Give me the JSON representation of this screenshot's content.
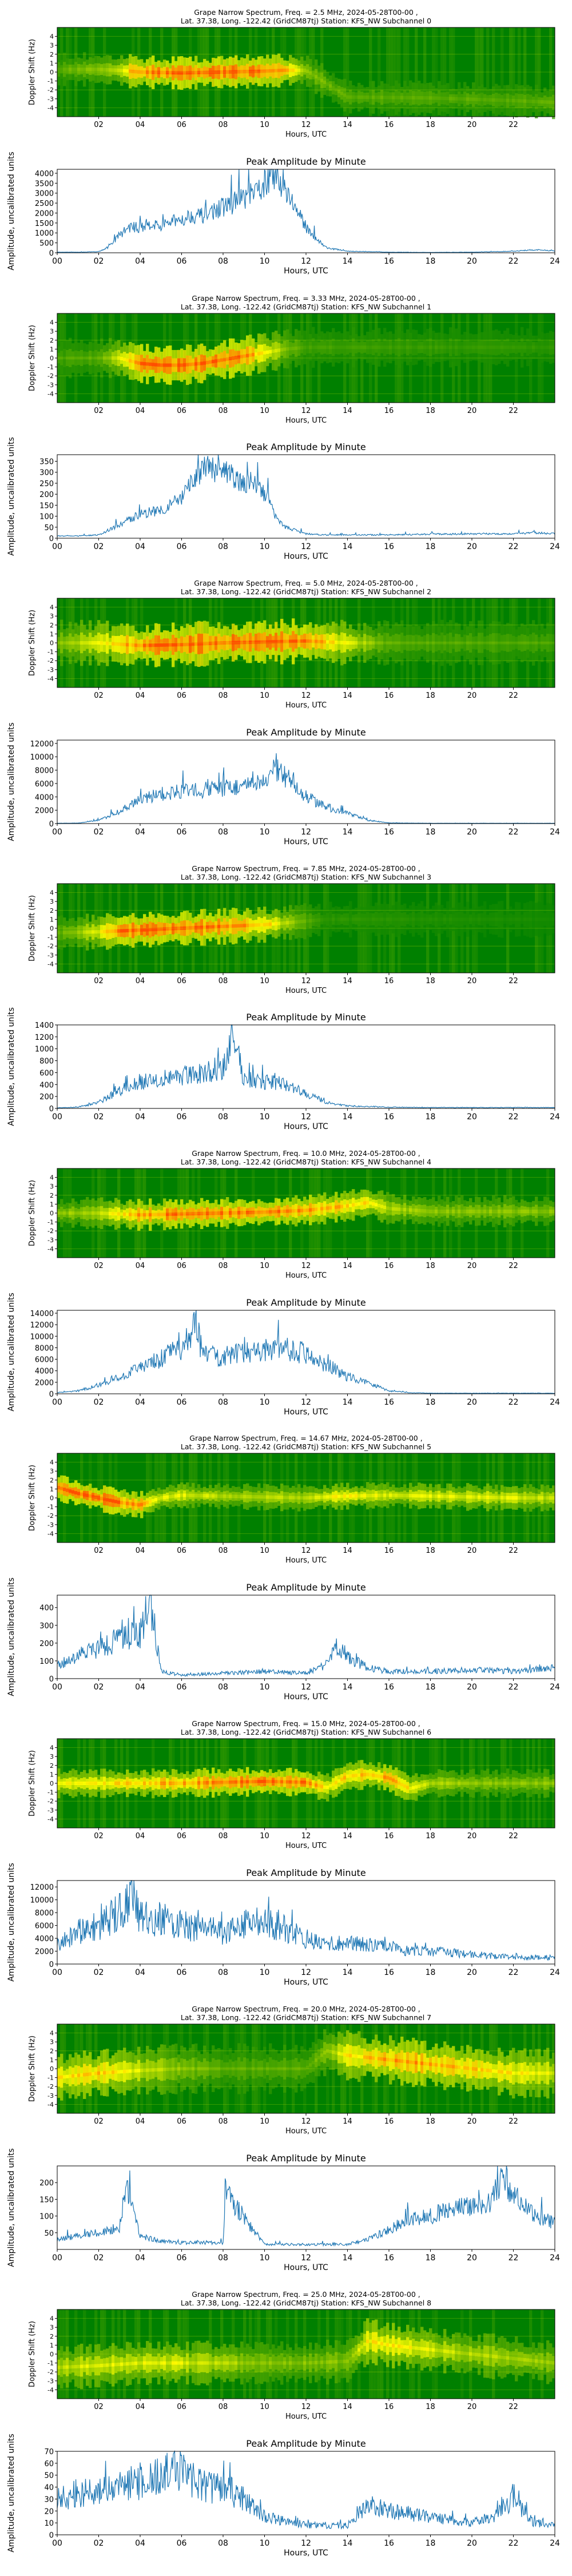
{
  "common": {
    "xlabel": "Hours, UTC",
    "spec_ylabel": "Doppler Shift (Hz)",
    "amp_title": "Peak Amplitude by Minute",
    "amp_ylabel": "Amplitude, uncalibrated units",
    "spec_xticks": [
      "02",
      "04",
      "06",
      "08",
      "10",
      "12",
      "14",
      "16",
      "18",
      "20",
      "22"
    ],
    "amp_xticks": [
      "00",
      "02",
      "04",
      "06",
      "08",
      "10",
      "12",
      "14",
      "16",
      "18",
      "20",
      "22",
      "24"
    ],
    "spec_yticks": [
      "-4",
      "-3",
      "-2",
      "-1",
      "0",
      "1",
      "2",
      "3",
      "4"
    ],
    "colors": {
      "line": "#1f77b4",
      "spec_bg": "#008000",
      "spec_mid": "#ffff00",
      "spec_hot": "#ff4500"
    }
  },
  "channels": [
    {
      "spec_title_1": "Grape Narrow Spectrum, Freq. = 2.5 MHz, 2024-05-28T00-00 ,",
      "spec_title_2": "Lat.  37.38, Long. -122.42 (GridCM87tj) Station: KFS_NW Subchannel 0"
    },
    {
      "spec_title_1": "Grape Narrow Spectrum, Freq. = 3.33 MHz, 2024-05-28T00-00 ,",
      "spec_title_2": "Lat.  37.38, Long. -122.42 (GridCM87tj) Station: KFS_NW Subchannel 1"
    },
    {
      "spec_title_1": "Grape Narrow Spectrum, Freq. = 5.0 MHz, 2024-05-28T00-00 ,",
      "spec_title_2": "Lat.  37.38, Long. -122.42 (GridCM87tj) Station: KFS_NW Subchannel 2"
    },
    {
      "spec_title_1": "Grape Narrow Spectrum, Freq. = 7.85 MHz, 2024-05-28T00-00 ,",
      "spec_title_2": "Lat.  37.38, Long. -122.42 (GridCM87tj) Station: KFS_NW Subchannel 3"
    },
    {
      "spec_title_1": "Grape Narrow Spectrum, Freq. = 10.0 MHz, 2024-05-28T00-00 ,",
      "spec_title_2": "Lat.  37.38, Long. -122.42 (GridCM87tj) Station: KFS_NW Subchannel 4"
    },
    {
      "spec_title_1": "Grape Narrow Spectrum, Freq. = 14.67 MHz, 2024-05-28T00-00 ,",
      "spec_title_2": "Lat.  37.38, Long. -122.42 (GridCM87tj) Station: KFS_NW Subchannel 5"
    },
    {
      "spec_title_1": "Grape Narrow Spectrum, Freq. = 15.0 MHz, 2024-05-28T00-00 ,",
      "spec_title_2": "Lat.  37.38, Long. -122.42 (GridCM87tj) Station: KFS_NW Subchannel 6"
    },
    {
      "spec_title_1": "Grape Narrow Spectrum, Freq. = 20.0 MHz, 2024-05-28T00-00 ,",
      "spec_title_2": "Lat.  37.38, Long. -122.42 (GridCM87tj) Station: KFS_NW Subchannel 7"
    },
    {
      "spec_title_1": "Grape Narrow Spectrum, Freq. = 25.0 MHz, 2024-05-28T00-00 ,",
      "spec_title_2": "Lat.  37.38, Long. -122.42 (GridCM87tj) Station: KFS_NW Subchannel 8"
    }
  ],
  "chart_data": [
    {
      "type": "heatmap",
      "title": "Grape Narrow Spectrum, Freq. = 2.5 MHz — Subchannel 0",
      "xlabel": "Hours, UTC",
      "ylabel": "Doppler Shift (Hz)",
      "xlim": [
        0,
        24
      ],
      "ylim": [
        -5,
        5
      ],
      "ridge_hours": [
        0,
        2,
        3,
        4,
        6,
        8,
        10,
        11,
        12,
        14,
        18,
        22,
        24
      ],
      "ridge_doppler": [
        0.3,
        0.3,
        0.2,
        0.0,
        -0.1,
        0.0,
        0.1,
        0.2,
        0.2,
        -2.8,
        -2.9,
        -3.2,
        -3.4
      ],
      "ridge_intensity": [
        0.2,
        0.3,
        0.5,
        0.9,
        1.0,
        1.0,
        1.0,
        0.8,
        0.3,
        0.2,
        0.2,
        0.2,
        0.2
      ],
      "spread_hz": 1.5
    },
    {
      "type": "line",
      "title": "Peak Amplitude by Minute",
      "xlabel": "Hours, UTC",
      "ylabel": "Amplitude, uncalibrated units",
      "xlim": [
        0,
        24
      ],
      "ylim": [
        0,
        4200
      ],
      "yticks": [
        0,
        500,
        1000,
        1500,
        2000,
        2500,
        3000,
        3500,
        4000
      ],
      "x": [
        0,
        1,
        2,
        2.5,
        3,
        3.5,
        4,
        4.5,
        5,
        5.5,
        6,
        6.5,
        7,
        7.5,
        8,
        8.5,
        9,
        9.5,
        10,
        10.3,
        10.6,
        11,
        11.5,
        12,
        12.5,
        13,
        14,
        16,
        18,
        20,
        22,
        23,
        24
      ],
      "y": [
        30,
        30,
        60,
        300,
        900,
        1300,
        1250,
        1500,
        1300,
        1550,
        1700,
        1900,
        1850,
        2100,
        2300,
        2500,
        2800,
        2900,
        3500,
        3900,
        3700,
        3300,
        2200,
        1300,
        700,
        250,
        80,
        30,
        20,
        30,
        80,
        150,
        100
      ],
      "noise_rel": 0.22
    },
    {
      "type": "heatmap",
      "title": "Grape Narrow Spectrum, Freq. = 3.33 MHz — Subchannel 1",
      "xlabel": "Hours, UTC",
      "ylabel": "Doppler Shift (Hz)",
      "xlim": [
        0,
        24
      ],
      "ylim": [
        -5,
        5
      ],
      "ridge_hours": [
        0,
        2,
        3,
        4,
        5,
        6,
        7,
        8,
        9,
        10,
        11,
        12,
        24
      ],
      "ridge_doppler": [
        0.0,
        0.0,
        0.0,
        -0.6,
        -0.8,
        -0.8,
        -0.6,
        -0.2,
        0.2,
        0.6,
        1.0,
        1.2,
        1.2
      ],
      "ridge_intensity": [
        0.15,
        0.2,
        0.5,
        0.9,
        1.0,
        1.0,
        1.0,
        1.0,
        0.9,
        0.6,
        0.3,
        0.15,
        0.1
      ],
      "spread_hz": 1.8
    },
    {
      "type": "line",
      "title": "Peak Amplitude by Minute",
      "xlabel": "Hours, UTC",
      "ylabel": "Amplitude, uncalibrated units",
      "xlim": [
        0,
        24
      ],
      "ylim": [
        0,
        380
      ],
      "yticks": [
        0,
        50,
        100,
        150,
        200,
        250,
        300,
        350
      ],
      "x": [
        0,
        1,
        2,
        3,
        4,
        5,
        6,
        6.5,
        7,
        7.5,
        8,
        8.5,
        9,
        9.5,
        10,
        10.5,
        11,
        12,
        13,
        14,
        16,
        18,
        20,
        22,
        23,
        24
      ],
      "y": [
        10,
        10,
        15,
        60,
        110,
        130,
        180,
        250,
        320,
        310,
        300,
        280,
        240,
        260,
        200,
        110,
        50,
        20,
        15,
        15,
        15,
        18,
        20,
        20,
        25,
        20
      ],
      "noise_rel": 0.2
    },
    {
      "type": "heatmap",
      "title": "Grape Narrow Spectrum, Freq. = 5.0 MHz — Subchannel 2",
      "xlabel": "Hours, UTC",
      "ylabel": "Doppler Shift (Hz)",
      "xlim": [
        0,
        24
      ],
      "ylim": [
        -5,
        5
      ],
      "ridge_hours": [
        0,
        2,
        4,
        6,
        8,
        10,
        12,
        14,
        16,
        24
      ],
      "ridge_doppler": [
        0.0,
        0.0,
        -0.3,
        -0.2,
        0.0,
        0.1,
        0.2,
        0.0,
        0.0,
        0.0
      ],
      "ridge_intensity": [
        0.3,
        0.5,
        0.9,
        1.0,
        1.0,
        1.0,
        0.9,
        0.5,
        0.2,
        0.15
      ],
      "spread_hz": 2.0
    },
    {
      "type": "line",
      "title": "Peak Amplitude by Minute",
      "xlabel": "Hours, UTC",
      "ylabel": "Amplitude, uncalibrated units",
      "xlim": [
        0,
        24
      ],
      "ylim": [
        0,
        12500
      ],
      "yticks": [
        0,
        2000,
        4000,
        6000,
        8000,
        10000,
        12000
      ],
      "x": [
        0,
        1,
        2,
        3,
        4,
        5,
        6,
        7,
        8,
        9,
        10,
        10.5,
        11,
        11.5,
        12,
        13,
        14,
        15,
        16,
        18,
        20,
        22,
        24
      ],
      "y": [
        50,
        80,
        500,
        1800,
        3500,
        4500,
        4800,
        5000,
        5300,
        5600,
        6000,
        8000,
        7000,
        6000,
        4000,
        2500,
        1500,
        500,
        100,
        50,
        50,
        50,
        50
      ],
      "noise_rel": 0.25
    },
    {
      "type": "heatmap",
      "title": "Grape Narrow Spectrum, Freq. = 7.85 MHz — Subchannel 3",
      "xlabel": "Hours, UTC",
      "ylabel": "Doppler Shift (Hz)",
      "xlim": [
        0,
        24
      ],
      "ylim": [
        -5,
        5
      ],
      "ridge_hours": [
        0,
        2,
        3,
        4,
        6,
        8,
        10,
        11,
        12,
        13,
        24
      ],
      "ridge_doppler": [
        -0.5,
        -0.4,
        -0.3,
        -0.2,
        0.0,
        0.2,
        0.4,
        0.6,
        0.8,
        1.0,
        1.0
      ],
      "ridge_intensity": [
        0.2,
        0.5,
        0.9,
        1.0,
        1.0,
        0.9,
        0.7,
        0.4,
        0.2,
        0.1,
        0.05
      ],
      "spread_hz": 1.6
    },
    {
      "type": "line",
      "title": "Peak Amplitude by Minute",
      "xlabel": "Hours, UTC",
      "ylabel": "Amplitude, uncalibrated units",
      "xlim": [
        0,
        24
      ],
      "ylim": [
        0,
        1400
      ],
      "yticks": [
        0,
        200,
        400,
        600,
        800,
        1000,
        1200,
        1400
      ],
      "x": [
        0,
        1,
        2,
        3,
        4,
        5,
        6,
        7,
        8,
        8.5,
        9,
        10,
        11,
        12,
        13,
        14,
        16,
        18,
        20,
        22,
        24
      ],
      "y": [
        10,
        20,
        100,
        300,
        450,
        500,
        550,
        600,
        650,
        1200,
        500,
        450,
        400,
        250,
        100,
        40,
        20,
        15,
        15,
        15,
        15
      ],
      "noise_rel": 0.3
    },
    {
      "type": "heatmap",
      "title": "Grape Narrow Spectrum, Freq. = 10.0 MHz — Subchannel 4",
      "xlabel": "Hours, UTC",
      "ylabel": "Doppler Shift (Hz)",
      "xlim": [
        0,
        24
      ],
      "ylim": [
        -5,
        5
      ],
      "ridge_hours": [
        0,
        2,
        4,
        6,
        8,
        10,
        12,
        14,
        15,
        16,
        18,
        24
      ],
      "ridge_doppler": [
        0.0,
        0.0,
        -0.2,
        -0.1,
        0.0,
        0.1,
        0.3,
        0.8,
        1.2,
        0.5,
        0.2,
        0.2
      ],
      "ridge_intensity": [
        0.3,
        0.4,
        0.8,
        1.0,
        0.9,
        0.9,
        0.8,
        0.7,
        0.6,
        0.4,
        0.3,
        0.3
      ],
      "spread_hz": 1.4
    },
    {
      "type": "line",
      "title": "Peak Amplitude by Minute",
      "xlabel": "Hours, UTC",
      "ylabel": "Amplitude, uncalibrated units",
      "xlim": [
        0,
        24
      ],
      "ylim": [
        0,
        14500
      ],
      "yticks": [
        0,
        2000,
        4000,
        6000,
        8000,
        10000,
        12000,
        14000
      ],
      "x": [
        0,
        1,
        2,
        3,
        4,
        5,
        6,
        6.7,
        7,
        8,
        9,
        10,
        11,
        12,
        13,
        14,
        15,
        16,
        17,
        18,
        20,
        22,
        24
      ],
      "y": [
        200,
        500,
        1500,
        3000,
        4500,
        6000,
        8000,
        12000,
        7000,
        6500,
        7000,
        7500,
        8000,
        7000,
        5000,
        3000,
        2000,
        500,
        200,
        100,
        100,
        100,
        100
      ],
      "noise_rel": 0.28
    },
    {
      "type": "heatmap",
      "title": "Grape Narrow Spectrum, Freq. = 14.67 MHz — Subchannel 5",
      "xlabel": "Hours, UTC",
      "ylabel": "Doppler Shift (Hz)",
      "xlim": [
        0,
        24
      ],
      "ylim": [
        -5,
        5
      ],
      "ridge_hours": [
        0,
        1,
        2,
        3,
        4,
        5,
        6,
        8,
        10,
        12,
        14,
        16,
        18,
        20,
        22,
        24
      ],
      "ridge_doppler": [
        1.2,
        0.5,
        0.0,
        -0.5,
        -0.8,
        0.0,
        0.3,
        0.2,
        0.1,
        0.0,
        0.2,
        0.3,
        0.2,
        0.1,
        0.0,
        0.0
      ],
      "ridge_intensity": [
        0.9,
        1.0,
        1.0,
        0.9,
        0.8,
        0.5,
        0.5,
        0.4,
        0.4,
        0.4,
        0.6,
        0.5,
        0.5,
        0.5,
        0.5,
        0.4
      ],
      "spread_hz": 1.2
    },
    {
      "type": "line",
      "title": "Peak Amplitude by Minute",
      "xlabel": "Hours, UTC",
      "ylabel": "Amplitude, uncalibrated units",
      "xlim": [
        0,
        24
      ],
      "ylim": [
        0,
        470
      ],
      "yticks": [
        0,
        100,
        200,
        300,
        400
      ],
      "x": [
        0,
        1,
        2,
        3,
        4,
        4.5,
        5,
        6,
        8,
        10,
        12,
        13,
        13.5,
        14,
        15,
        16,
        18,
        20,
        22,
        23,
        24
      ],
      "y": [
        80,
        120,
        180,
        220,
        250,
        450,
        40,
        20,
        30,
        40,
        30,
        80,
        180,
        120,
        60,
        40,
        40,
        50,
        40,
        50,
        60
      ],
      "noise_rel": 0.35
    },
    {
      "type": "heatmap",
      "title": "Grape Narrow Spectrum, Freq. = 15.0 MHz — Subchannel 6",
      "xlabel": "Hours, UTC",
      "ylabel": "Doppler Shift (Hz)",
      "xlim": [
        0,
        24
      ],
      "ylim": [
        -5,
        5
      ],
      "ridge_hours": [
        0,
        2,
        4,
        6,
        8,
        10,
        12,
        13,
        14,
        15,
        16,
        17,
        18,
        20,
        24
      ],
      "ridge_doppler": [
        0.0,
        0.0,
        0.0,
        0.0,
        0.1,
        0.2,
        0.1,
        -0.5,
        0.8,
        1.0,
        0.6,
        -0.6,
        0.0,
        0.0,
        0.0
      ],
      "ridge_intensity": [
        0.5,
        0.6,
        0.7,
        0.8,
        0.9,
        1.0,
        0.9,
        0.6,
        0.7,
        0.7,
        0.8,
        0.6,
        0.4,
        0.3,
        0.3
      ],
      "spread_hz": 1.3
    },
    {
      "type": "line",
      "title": "Peak Amplitude by Minute",
      "xlabel": "Hours, UTC",
      "ylabel": "Amplitude, uncalibrated units",
      "xlim": [
        0,
        24
      ],
      "ylim": [
        0,
        13000
      ],
      "yticks": [
        0,
        2000,
        4000,
        6000,
        8000,
        10000,
        12000
      ],
      "x": [
        0,
        1,
        2,
        3,
        3.7,
        4,
        5,
        6,
        7,
        8,
        9,
        10,
        11,
        12,
        13,
        14,
        15,
        16,
        17,
        18,
        20,
        22,
        24
      ],
      "y": [
        3000,
        5000,
        6000,
        8000,
        11000,
        7000,
        7000,
        6000,
        5500,
        5000,
        6000,
        6500,
        5500,
        4000,
        3000,
        3500,
        3000,
        2500,
        2000,
        2000,
        1500,
        1000,
        1000
      ],
      "noise_rel": 0.4
    },
    {
      "type": "heatmap",
      "title": "Grape Narrow Spectrum, Freq. = 20.0 MHz — Subchannel 7",
      "xlabel": "Hours, UTC",
      "ylabel": "Doppler Shift (Hz)",
      "xlim": [
        0,
        24
      ],
      "ylim": [
        -5,
        5
      ],
      "ridge_hours": [
        0,
        2,
        4,
        6,
        8,
        10,
        12,
        13,
        14,
        16,
        18,
        20,
        22,
        24
      ],
      "ridge_doppler": [
        -1.0,
        -0.5,
        -0.2,
        0.0,
        0.0,
        0.0,
        0.0,
        2.0,
        1.5,
        1.0,
        0.5,
        0.0,
        -0.5,
        -0.5
      ],
      "ridge_intensity": [
        0.6,
        0.7,
        0.5,
        0.3,
        0.2,
        0.2,
        0.2,
        0.3,
        0.6,
        0.8,
        0.8,
        0.7,
        0.6,
        0.5
      ],
      "spread_hz": 2.2
    },
    {
      "type": "line",
      "title": "Peak Amplitude by Minute",
      "xlabel": "Hours, UTC",
      "ylabel": "Amplitude, uncalibrated units",
      "xlim": [
        0,
        24
      ],
      "ylim": [
        0,
        250
      ],
      "yticks": [
        50,
        100,
        150,
        200
      ],
      "x": [
        0,
        1,
        2,
        3,
        3.3,
        4,
        5,
        6,
        8,
        8.1,
        10,
        12,
        14,
        15,
        16,
        17,
        18,
        19,
        20,
        21,
        21.5,
        22,
        23,
        24
      ],
      "y": [
        30,
        40,
        50,
        60,
        200,
        40,
        25,
        20,
        20,
        170,
        15,
        15,
        15,
        30,
        60,
        90,
        100,
        120,
        130,
        150,
        230,
        160,
        100,
        80
      ],
      "noise_rel": 0.25
    },
    {
      "type": "heatmap",
      "title": "Grape Narrow Spectrum, Freq. = 25.0 MHz — Subchannel 8",
      "xlabel": "Hours, UTC",
      "ylabel": "Doppler Shift (Hz)",
      "xlim": [
        0,
        24
      ],
      "ylim": [
        -5,
        5
      ],
      "ridge_hours": [
        0,
        2,
        4,
        6,
        8,
        10,
        12,
        14,
        15,
        16,
        18,
        20,
        22,
        24
      ],
      "ridge_doppler": [
        -1.5,
        -1.3,
        -1.0,
        -1.0,
        -1.0,
        -1.0,
        -1.0,
        -0.8,
        1.5,
        1.0,
        0.5,
        0.0,
        -0.5,
        -1.0
      ],
      "ridge_intensity": [
        0.4,
        0.5,
        0.5,
        0.5,
        0.4,
        0.3,
        0.3,
        0.3,
        0.6,
        0.6,
        0.5,
        0.4,
        0.4,
        0.3
      ],
      "spread_hz": 2.0
    },
    {
      "type": "line",
      "title": "Peak Amplitude by Minute",
      "xlabel": "Hours, UTC",
      "ylabel": "Amplitude, uncalibrated units",
      "xlim": [
        0,
        24
      ],
      "ylim": [
        0,
        70
      ],
      "yticks": [
        0,
        10,
        20,
        30,
        40,
        50,
        60,
        70
      ],
      "x": [
        0,
        1,
        2,
        3,
        4,
        5,
        6,
        7,
        8,
        9,
        10,
        12,
        14,
        15,
        16,
        18,
        20,
        21,
        22,
        23,
        24
      ],
      "y": [
        30,
        35,
        35,
        40,
        45,
        50,
        55,
        40,
        40,
        30,
        15,
        8,
        8,
        25,
        20,
        15,
        10,
        15,
        30,
        10,
        8
      ],
      "noise_rel": 0.35
    }
  ]
}
